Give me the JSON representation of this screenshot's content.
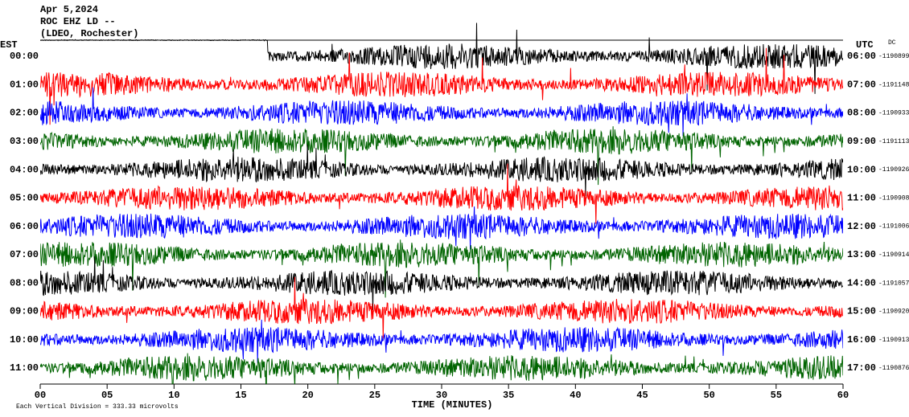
{
  "header": {
    "date": "Apr 5,2024",
    "station": "ROC EHZ LD --",
    "network": "(LDEO, Rochester)"
  },
  "chart_data": {
    "type": "helicorder",
    "left_axis_title": "EST",
    "right_axis_title": "UTC",
    "dc_title": "DC",
    "est": [
      "00:00",
      "01:00",
      "02:00",
      "03:00",
      "04:00",
      "05:00",
      "06:00",
      "07:00",
      "08:00",
      "09:00",
      "10:00",
      "11:00"
    ],
    "utc": [
      "06:00",
      "07:00",
      "08:00",
      "09:00",
      "10:00",
      "11:00",
      "12:00",
      "13:00",
      "14:00",
      "15:00",
      "16:00",
      "17:00"
    ],
    "dc": [
      "-1190899",
      "-1191148",
      "-1190933",
      "-1191113",
      "-1190926",
      "-1190908",
      "-1191006",
      "-1190914",
      "-1191057",
      "-1190920",
      "-1190913",
      "-1190876"
    ],
    "trace_colors": [
      "#000000",
      "#ff0000",
      "#0000ff",
      "#006400"
    ],
    "xlim": [
      0,
      60
    ],
    "xticks": [
      {
        "value": 0,
        "label": "00"
      },
      {
        "value": 5,
        "label": "05"
      },
      10,
      15,
      20,
      25,
      30,
      35,
      40,
      45,
      50,
      55,
      60
    ],
    "xlabel": "TIME (MINUTES)",
    "footnote": "Each Vertical Division =  333.33 microvolts"
  }
}
